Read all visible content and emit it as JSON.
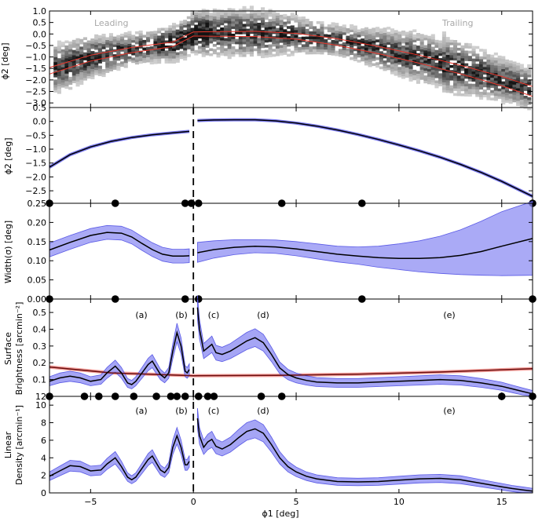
{
  "figure": {
    "xlabel": "ϕ1 [deg]",
    "xlim": [
      -7,
      16.5
    ],
    "xticks": [
      -5,
      0,
      5,
      10,
      15
    ]
  },
  "chart_data": [
    {
      "id": "phi2_density",
      "type": "heatmap",
      "ylabel": "ϕ2 [deg]",
      "ylim": [
        -3.2,
        1.0
      ],
      "yticks": [
        1.0,
        0.5,
        0.0,
        -0.5,
        -1.0,
        -1.5,
        -2.0,
        -2.5,
        -3.0
      ],
      "annotations": [
        "Leading",
        "Trailing"
      ],
      "track_x": [
        -7,
        -5,
        -3,
        -1,
        0,
        1,
        3,
        5,
        7,
        9,
        11,
        13,
        15,
        16.5
      ],
      "track_y": [
        -1.6,
        -1.05,
        -0.7,
        -0.45,
        0.0,
        0.0,
        0.0,
        -0.1,
        -0.35,
        -0.7,
        -1.1,
        -1.55,
        -2.05,
        -2.5
      ],
      "fit_line_color": "#e8362b"
    },
    {
      "id": "track",
      "type": "line",
      "ylabel": "ϕ2 [deg]",
      "ylim": [
        -2.95,
        0.5
      ],
      "yticks": [
        0.5,
        0.0,
        -0.5,
        -1.0,
        -1.5,
        -2.0,
        -2.5
      ],
      "series": [
        {
          "name": "leading",
          "x": [
            -7,
            -6,
            -5,
            -4,
            -3,
            -2,
            -1,
            -0.2
          ],
          "y": [
            -1.65,
            -1.2,
            -0.92,
            -0.72,
            -0.58,
            -0.48,
            -0.41,
            -0.36
          ]
        },
        {
          "name": "trailing",
          "x": [
            0.2,
            1,
            2,
            3,
            4,
            5,
            6,
            7,
            8,
            9,
            10,
            11,
            12,
            13,
            14,
            15,
            16.5
          ],
          "y": [
            0.03,
            0.05,
            0.06,
            0.06,
            0.02,
            -0.06,
            -0.17,
            -0.31,
            -0.47,
            -0.65,
            -0.85,
            -1.06,
            -1.29,
            -1.55,
            -1.84,
            -2.16,
            -2.7
          ]
        }
      ],
      "nodes_x": [
        -7,
        -3.8,
        -0.4,
        -0.1,
        0.25,
        4.3,
        8.2,
        16.5
      ]
    },
    {
      "id": "width",
      "type": "line",
      "ylabel": "Width(σ) [deg]",
      "ylim": [
        0.0,
        0.25
      ],
      "yticks": [
        0.25,
        0.2,
        0.15,
        0.1,
        0.05,
        0.0
      ],
      "series": [
        {
          "name": "leading",
          "x": [
            -7,
            -6,
            -5,
            -4.2,
            -3.5,
            -3,
            -2.5,
            -2,
            -1.5,
            -1,
            -0.5,
            -0.2
          ],
          "y": [
            0.128,
            0.148,
            0.166,
            0.174,
            0.172,
            0.162,
            0.145,
            0.129,
            0.117,
            0.112,
            0.112,
            0.113
          ]
        },
        {
          "name": "trailing",
          "x": [
            0.2,
            1,
            2,
            3,
            4,
            5,
            6,
            7,
            8,
            9,
            10,
            11,
            12,
            13,
            14,
            15,
            16.5
          ],
          "y": [
            0.121,
            0.129,
            0.135,
            0.138,
            0.136,
            0.131,
            0.124,
            0.117,
            0.112,
            0.108,
            0.106,
            0.106,
            0.108,
            0.114,
            0.124,
            0.138,
            0.158
          ]
        }
      ],
      "upper": [
        0.148,
        0.152,
        0.155,
        0.155,
        0.154,
        0.15,
        0.144,
        0.138,
        0.136,
        0.138,
        0.144,
        0.152,
        0.164,
        0.181,
        0.203,
        0.228,
        0.255
      ],
      "lower": [
        0.096,
        0.107,
        0.116,
        0.121,
        0.119,
        0.113,
        0.105,
        0.097,
        0.091,
        0.083,
        0.077,
        0.071,
        0.067,
        0.064,
        0.062,
        0.061,
        0.062
      ],
      "lead_band": 0.018,
      "nodes_x": [
        -7,
        -3.8,
        -0.4,
        0.25,
        8.2,
        16.5
      ]
    },
    {
      "id": "surface_brightness",
      "type": "line",
      "ylabel_lines": [
        "Surface",
        "Brightness [arcmin⁻²]"
      ],
      "ylim": [
        0.0,
        0.58
      ],
      "yticks": [
        0.5,
        0.4,
        0.3,
        0.2,
        0.1
      ],
      "bottom_tick_label": "12",
      "annotations": [
        {
          "text": "(a)",
          "x": -3.7
        },
        {
          "text": "(b)",
          "x": -0.7
        },
        {
          "text": "(c)",
          "x": 1.0
        },
        {
          "text": "(d)",
          "x": 3.3
        },
        {
          "text": "(e)",
          "x": 12.4
        }
      ],
      "series": [
        {
          "name": "leading",
          "x": [
            -7,
            -6.5,
            -6,
            -5.5,
            -5,
            -4.5,
            -4.2,
            -3.8,
            -3.5,
            -3.2,
            -3,
            -2.8,
            -2.5,
            -2.2,
            -2,
            -1.8,
            -1.6,
            -1.4,
            -1.2,
            -1,
            -0.8,
            -0.6,
            -0.4,
            -0.3,
            -0.2
          ],
          "y": [
            0.09,
            0.11,
            0.12,
            0.11,
            0.09,
            0.1,
            0.14,
            0.18,
            0.14,
            0.08,
            0.07,
            0.09,
            0.14,
            0.19,
            0.21,
            0.17,
            0.13,
            0.11,
            0.14,
            0.27,
            0.38,
            0.3,
            0.15,
            0.14,
            0.16
          ]
        },
        {
          "name": "trailing",
          "x": [
            0.2,
            0.3,
            0.5,
            0.7,
            0.9,
            1.1,
            1.4,
            1.8,
            2.2,
            2.6,
            3.0,
            3.4,
            3.8,
            4.2,
            4.6,
            5.0,
            5.5,
            6,
            7,
            8,
            9,
            10,
            11,
            12,
            13,
            14,
            15,
            15.5,
            16,
            16.5
          ],
          "y": [
            0.53,
            0.4,
            0.27,
            0.29,
            0.31,
            0.26,
            0.25,
            0.27,
            0.3,
            0.33,
            0.35,
            0.32,
            0.25,
            0.17,
            0.13,
            0.11,
            0.095,
            0.085,
            0.08,
            0.08,
            0.085,
            0.09,
            0.095,
            0.1,
            0.095,
            0.08,
            0.06,
            0.045,
            0.03,
            0.015
          ]
        }
      ],
      "background": {
        "x": [
          -7,
          -4,
          0,
          4,
          8,
          12,
          16.5
        ],
        "y": [
          0.175,
          0.14,
          0.123,
          0.125,
          0.132,
          0.145,
          0.165
        ]
      },
      "nodes_x": [
        -7,
        -5.3,
        -4.6,
        -3.8,
        -2.9,
        -1.8,
        -1.1,
        -0.8,
        -0.4,
        0.25,
        0.7,
        1.0,
        3.3,
        4.3,
        15.0,
        16.5
      ]
    },
    {
      "id": "linear_density",
      "type": "line",
      "ylabel_lines": [
        "Linear",
        "Density [arcmin⁻¹]"
      ],
      "ylim": [
        0,
        11
      ],
      "yticks": [
        10,
        8,
        6,
        4,
        2,
        0
      ],
      "annotations": [
        {
          "text": "(a)",
          "x": -3.7
        },
        {
          "text": "(b)",
          "x": -0.7
        },
        {
          "text": "(c)",
          "x": 1.0
        },
        {
          "text": "(d)",
          "x": 3.3
        },
        {
          "text": "(e)",
          "x": 12.4
        }
      ],
      "series": [
        {
          "name": "leading",
          "x": [
            -7,
            -6.5,
            -6,
            -5.5,
            -5,
            -4.5,
            -4.2,
            -3.8,
            -3.5,
            -3.2,
            -3,
            -2.8,
            -2.5,
            -2.2,
            -2,
            -1.8,
            -1.6,
            -1.4,
            -1.2,
            -1,
            -0.8,
            -0.6,
            -0.4,
            -0.3,
            -0.2
          ],
          "y": [
            1.9,
            2.5,
            3.1,
            3.0,
            2.5,
            2.6,
            3.3,
            4.0,
            3.0,
            1.8,
            1.5,
            1.8,
            2.8,
            3.8,
            4.2,
            3.4,
            2.6,
            2.3,
            2.9,
            5.2,
            6.5,
            5.2,
            3.2,
            3.2,
            3.6
          ]
        },
        {
          "name": "trailing",
          "x": [
            0.2,
            0.3,
            0.5,
            0.7,
            0.9,
            1.1,
            1.4,
            1.8,
            2.2,
            2.6,
            3.0,
            3.4,
            3.8,
            4.2,
            4.6,
            5.0,
            5.5,
            6,
            7,
            8,
            9,
            10,
            11,
            12,
            13,
            14,
            15,
            15.5,
            16,
            16.5
          ],
          "y": [
            8.5,
            6.5,
            5.2,
            5.8,
            6.1,
            5.3,
            5.0,
            5.5,
            6.3,
            7.0,
            7.3,
            6.8,
            5.5,
            4.0,
            3.0,
            2.4,
            1.9,
            1.6,
            1.3,
            1.25,
            1.3,
            1.45,
            1.6,
            1.65,
            1.5,
            1.1,
            0.7,
            0.5,
            0.35,
            0.2
          ]
        }
      ]
    }
  ]
}
